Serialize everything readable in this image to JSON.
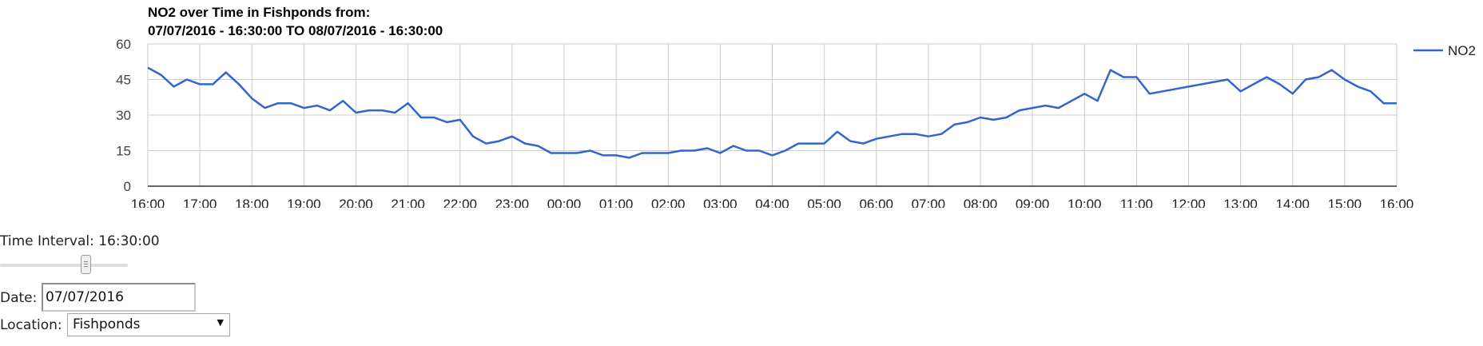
{
  "chart_data": {
    "type": "line",
    "title_line1": "NO2 over Time in Fishponds from:",
    "title_line2": "07/07/2016 - 16:30:00 TO 08/07/2016 - 16:30:00",
    "xlabel": "",
    "ylabel": "",
    "ylim": [
      0,
      60
    ],
    "yticks": [
      "0",
      "15",
      "30",
      "45",
      "60"
    ],
    "xticks": [
      "16:00",
      "17:00",
      "18:00",
      "19:00",
      "20:00",
      "21:00",
      "22:00",
      "23:00",
      "00:00",
      "01:00",
      "02:00",
      "03:00",
      "04:00",
      "05:00",
      "06:00",
      "07:00",
      "08:00",
      "09:00",
      "10:00",
      "11:00",
      "12:00",
      "13:00",
      "14:00",
      "15:00",
      "16:00"
    ],
    "grid": true,
    "legend_position": "right",
    "series": [
      {
        "name": "NO2",
        "color": "#3366cc",
        "x": [
          "16:00",
          "16:15",
          "16:30",
          "16:45",
          "17:00",
          "17:15",
          "17:30",
          "17:45",
          "18:00",
          "18:15",
          "18:30",
          "18:45",
          "19:00",
          "19:15",
          "19:30",
          "19:45",
          "20:00",
          "20:15",
          "20:30",
          "20:45",
          "21:00",
          "21:15",
          "21:30",
          "21:45",
          "22:00",
          "22:15",
          "22:30",
          "22:45",
          "23:00",
          "23:15",
          "23:30",
          "23:45",
          "00:00",
          "00:15",
          "00:30",
          "00:45",
          "01:00",
          "01:15",
          "01:30",
          "01:45",
          "02:00",
          "02:15",
          "02:30",
          "02:45",
          "03:00",
          "03:15",
          "03:30",
          "03:45",
          "04:00",
          "04:15",
          "04:30",
          "04:45",
          "05:00",
          "05:15",
          "05:30",
          "05:45",
          "06:00",
          "06:15",
          "06:30",
          "06:45",
          "07:00",
          "07:15",
          "07:30",
          "07:45",
          "08:00",
          "08:15",
          "08:30",
          "08:45",
          "09:00",
          "09:15",
          "09:30",
          "10:00",
          "10:15",
          "10:30",
          "10:45",
          "11:00",
          "11:15",
          "12:45",
          "13:00",
          "13:15",
          "13:30",
          "13:45",
          "14:00",
          "14:15",
          "14:30",
          "14:45",
          "15:00",
          "15:15",
          "15:30",
          "15:45",
          "16:00"
        ],
        "values": [
          50,
          47,
          42,
          45,
          43,
          43,
          48,
          43,
          37,
          33,
          35,
          35,
          33,
          34,
          32,
          36,
          31,
          32,
          32,
          31,
          35,
          29,
          29,
          27,
          28,
          21,
          18,
          19,
          21,
          18,
          17,
          14,
          14,
          14,
          15,
          13,
          13,
          12,
          14,
          14,
          14,
          15,
          15,
          16,
          14,
          17,
          15,
          15,
          13,
          15,
          18,
          18,
          18,
          23,
          19,
          18,
          20,
          21,
          22,
          22,
          21,
          22,
          26,
          27,
          29,
          28,
          29,
          32,
          33,
          34,
          33,
          39,
          36,
          49,
          46,
          46,
          39,
          45,
          40,
          43,
          46,
          43,
          39,
          45,
          46,
          49,
          45,
          42,
          40,
          35,
          35
        ]
      }
    ]
  },
  "controls": {
    "time_interval_label": "Time Interval: 16:30:00",
    "date_label": "Date:",
    "date_value": "07/07/2016",
    "location_label": "Location:",
    "location_value": "Fishponds",
    "slider_value": 0.69,
    "dropdown_arrow": "▼"
  }
}
